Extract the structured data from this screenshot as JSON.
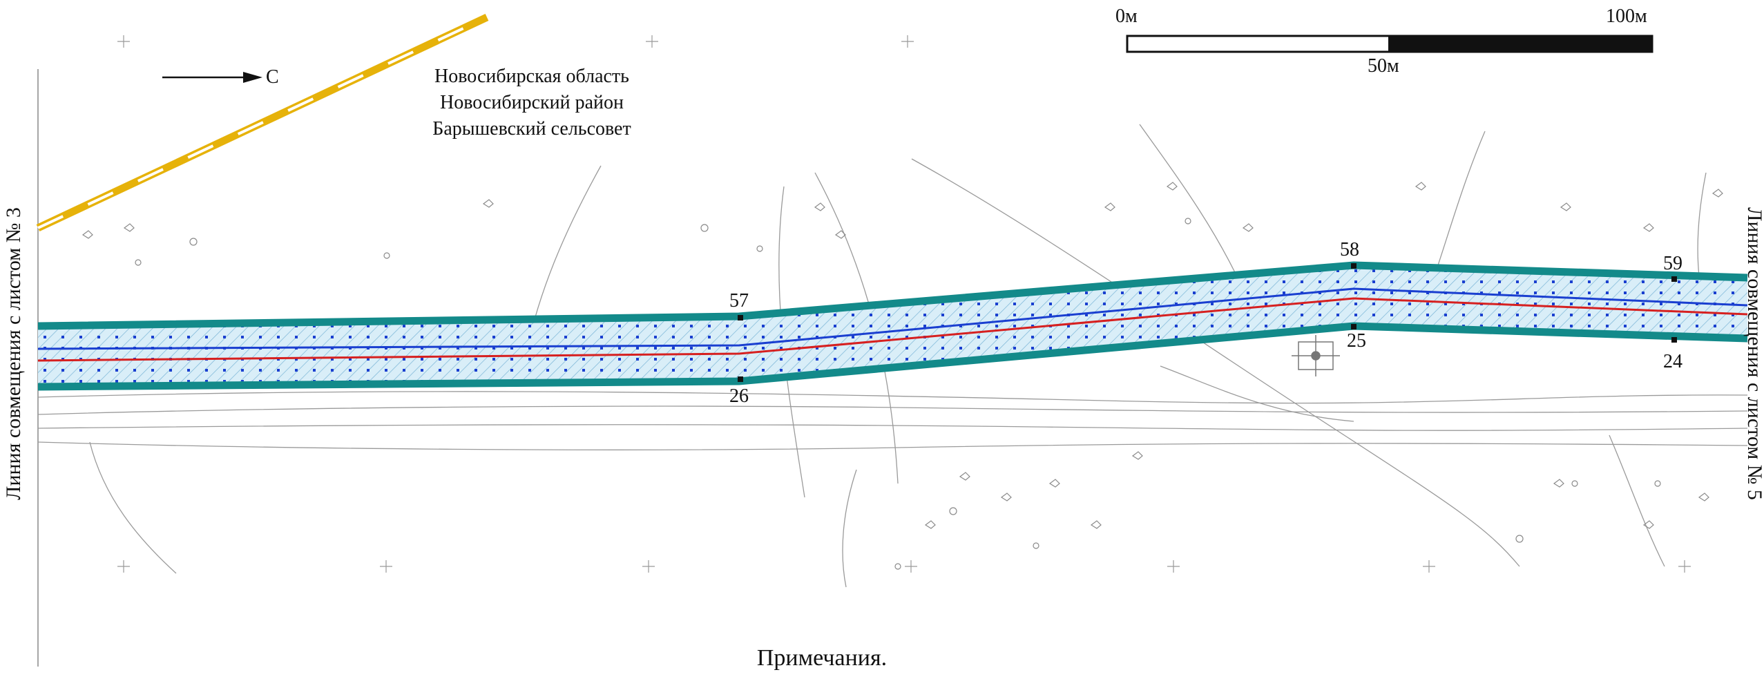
{
  "region": {
    "line1": "Новосибирская область",
    "line2": "Новосибирский район",
    "line3": "Барышевский сельсовет"
  },
  "north_arrow": {
    "letter": "С"
  },
  "scale_bar": {
    "start_label": "0м",
    "mid_label": "50м",
    "end_label": "100м"
  },
  "sheet_links": {
    "left": "Линия совмещения с листом № 3",
    "right": "Линия совмещения с листом № 5"
  },
  "points": {
    "p57": "57",
    "p26": "26",
    "p58": "58",
    "p25": "25",
    "p59": "59",
    "p24": "24"
  },
  "notes_title": "Примечания.",
  "colors": {
    "corridor_border": "#138a8a",
    "corridor_fill": "#cfeaf5",
    "centerline_blue": "#1a3fd0",
    "centerline_red": "#d62020",
    "railway_yellow": "#e6b20a",
    "topo_gray": "#9a9a9a"
  }
}
